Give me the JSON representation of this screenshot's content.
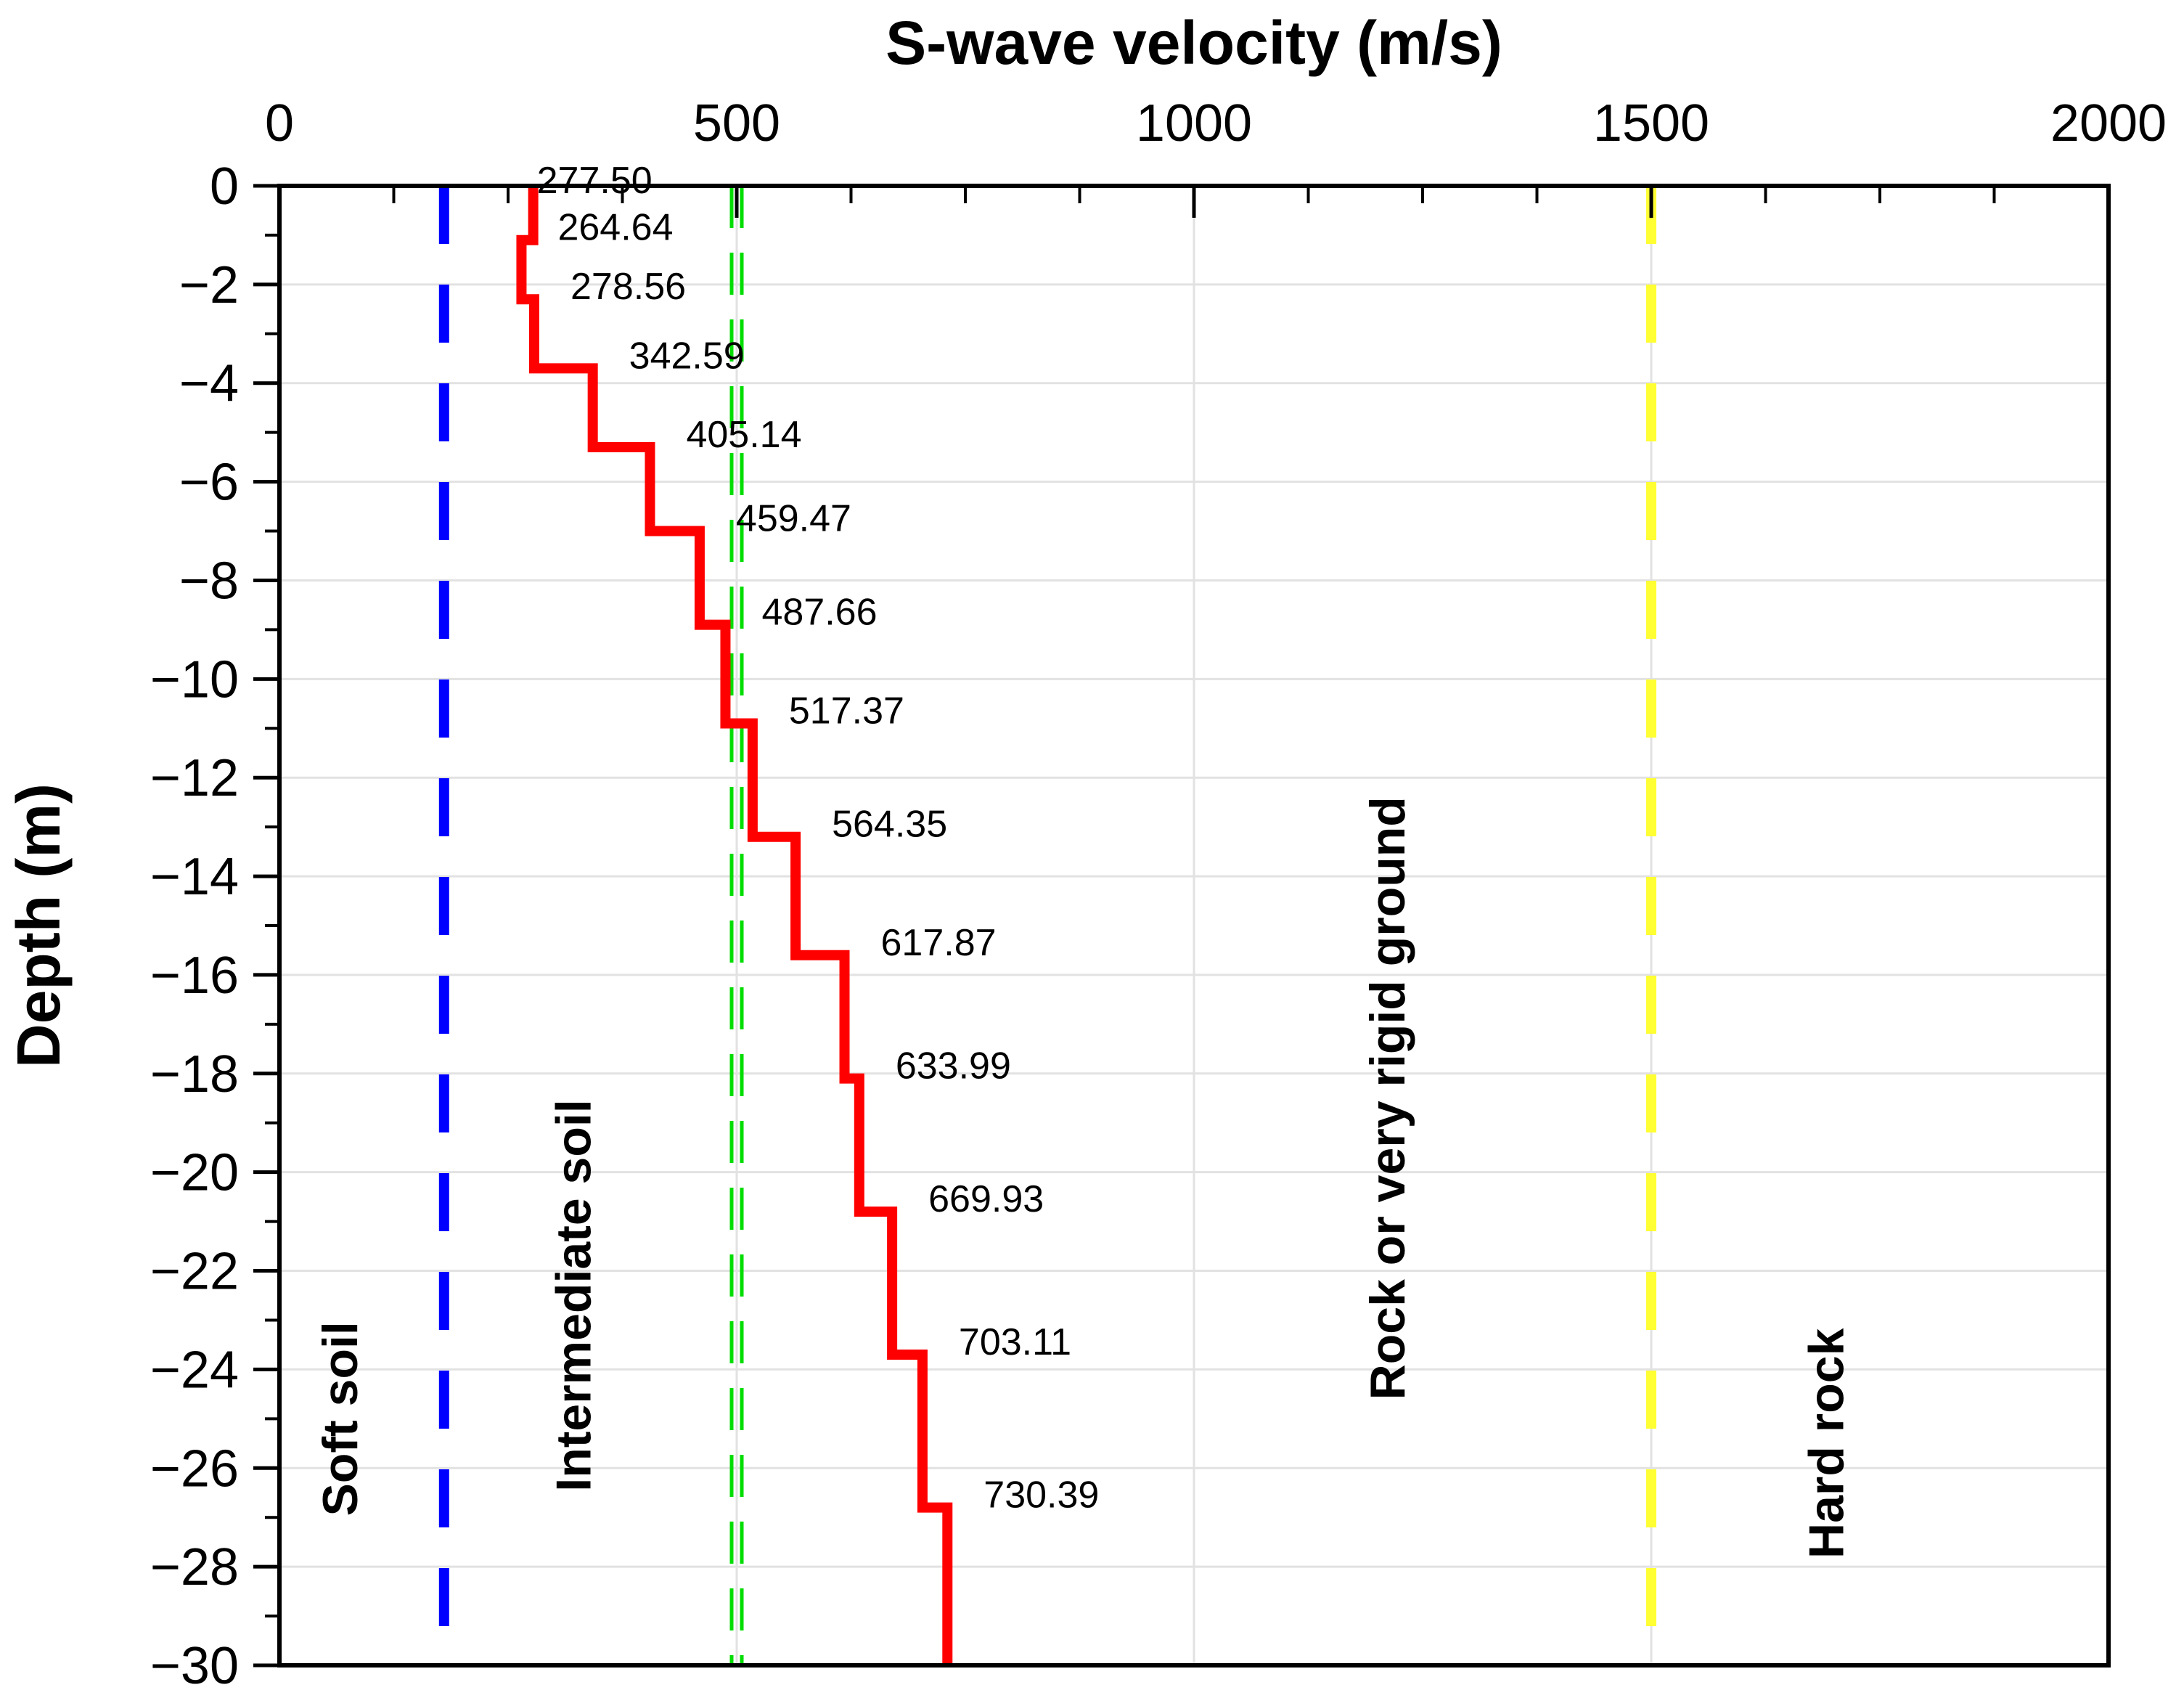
{
  "chart_data": {
    "type": "line",
    "title": "S-wave velocity (m/s)",
    "xlabel": "S-wave velocity (m/s)",
    "ylabel": "Depth (m)",
    "xlim": [
      0,
      2000
    ],
    "ylim": [
      -30,
      0
    ],
    "x_ticks": [
      0,
      500,
      1000,
      1500,
      2000
    ],
    "y_ticks": [
      0,
      -2,
      -4,
      -6,
      -8,
      -10,
      -12,
      -14,
      -16,
      -18,
      -20,
      -22,
      -24,
      -26,
      -28,
      -30
    ],
    "x_tick_labels": [
      "0",
      "500",
      "1000",
      "1500",
      "2000"
    ],
    "y_tick_labels": [
      "0",
      "−2",
      "−4",
      "−6",
      "−8",
      "−10",
      "−12",
      "−14",
      "−16",
      "−18",
      "−20",
      "−22",
      "−24",
      "−26",
      "−28",
      "−30"
    ],
    "grid": true,
    "series": [
      {
        "name": "Vs profile",
        "color": "#ff0000",
        "layers": [
          {
            "velocity": 277.5,
            "top": 0,
            "bottom": -1.1,
            "label": "277.50"
          },
          {
            "velocity": 264.64,
            "top": -1.1,
            "bottom": -2.3,
            "label": "264.64"
          },
          {
            "velocity": 278.56,
            "top": -2.3,
            "bottom": -3.7,
            "label": "278.56"
          },
          {
            "velocity": 342.59,
            "top": -3.7,
            "bottom": -5.3,
            "label": "342.59"
          },
          {
            "velocity": 405.14,
            "top": -5.3,
            "bottom": -7.0,
            "label": "405.14"
          },
          {
            "velocity": 459.47,
            "top": -7.0,
            "bottom": -8.9,
            "label": "459.47"
          },
          {
            "velocity": 487.66,
            "top": -8.9,
            "bottom": -10.9,
            "label": "487.66"
          },
          {
            "velocity": 517.37,
            "top": -10.9,
            "bottom": -13.2,
            "label": "517.37"
          },
          {
            "velocity": 564.35,
            "top": -13.2,
            "bottom": -15.6,
            "label": "564.35"
          },
          {
            "velocity": 617.87,
            "top": -15.6,
            "bottom": -18.1,
            "label": "617.87"
          },
          {
            "velocity": 633.99,
            "top": -18.1,
            "bottom": -20.8,
            "label": "633.99"
          },
          {
            "velocity": 669.93,
            "top": -20.8,
            "bottom": -23.7,
            "label": "669.93"
          },
          {
            "velocity": 703.11,
            "top": -23.7,
            "bottom": -26.8,
            "label": "703.11"
          },
          {
            "velocity": 730.39,
            "top": -26.8,
            "bottom": -30,
            "label": "730.39"
          }
        ]
      }
    ],
    "thresholds": [
      {
        "velocity": 180,
        "color": "#0000ff",
        "style": "dashed"
      },
      {
        "velocity": 500,
        "color": "#00dd00",
        "style": "dashed-double"
      },
      {
        "velocity": 1500,
        "color": "#ffff33",
        "style": "dashed"
      }
    ],
    "zones": [
      {
        "label": "Soft soil",
        "x": 85,
        "y": -25
      },
      {
        "label": "Intermediate soil",
        "x": 340,
        "y": -22.5
      },
      {
        "label": "Rock or very rigid ground",
        "x": 1230,
        "y": -18.5
      },
      {
        "label": "Hard rock",
        "x": 1710,
        "y": -25.5
      }
    ]
  }
}
